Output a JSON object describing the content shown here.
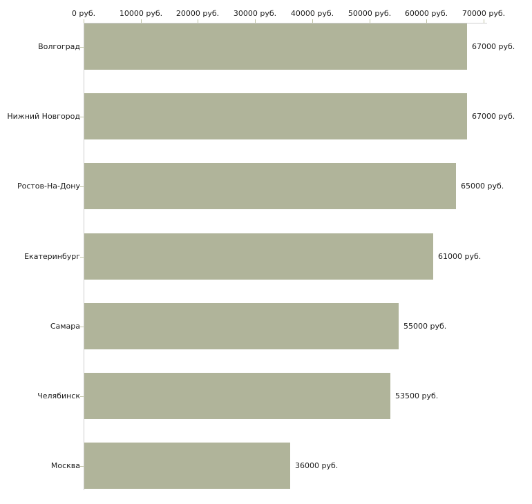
{
  "chart_data": {
    "type": "bar",
    "orientation": "horizontal",
    "title": "",
    "xlabel": "",
    "ylabel": "",
    "unit": "руб.",
    "categories": [
      "Волгоград",
      "Нижний Новгород",
      "Ростов-На-Дону",
      "Екатеринбург",
      "Самара",
      "Челябинск",
      "Москва"
    ],
    "values": [
      67000,
      67000,
      65000,
      61000,
      55000,
      53500,
      36000
    ],
    "value_labels": [
      "67000 руб.",
      "67000 руб.",
      "65000 руб.",
      "61000 руб.",
      "55000 руб.",
      "53500 руб.",
      "36000 руб."
    ],
    "x_tick_values": [
      0,
      10000,
      20000,
      30000,
      40000,
      50000,
      60000,
      70000
    ],
    "x_tick_labels": [
      "0 руб.",
      "10000 руб.",
      "20000 руб.",
      "30000 руб.",
      "40000 руб.",
      "50000 руб.",
      "60000 руб.",
      "70000 руб."
    ],
    "xlim": [
      0,
      70000
    ],
    "grid": false,
    "legend": false,
    "colors": {
      "bar": "#b0b49a",
      "axis_line": "#cdcdcd",
      "tick": "#bec1a2",
      "text": "#1a1a1a",
      "background": "#ffffff"
    }
  }
}
